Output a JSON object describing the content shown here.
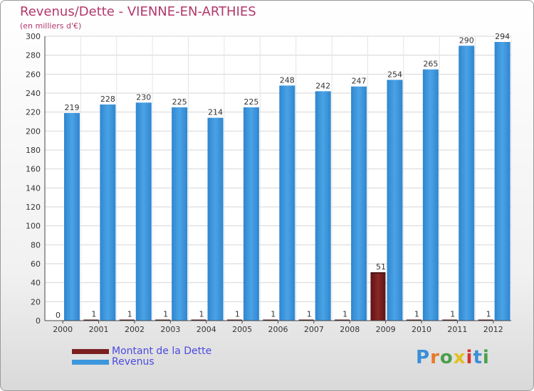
{
  "chart_data": {
    "type": "bar",
    "title": "Revenus/Dette - VIENNE-EN-ARTHIES",
    "subtitle": "(en milliers d'€)",
    "categories": [
      "2000",
      "2001",
      "2002",
      "2003",
      "2004",
      "2005",
      "2006",
      "2007",
      "2008",
      "2009",
      "2010",
      "2011",
      "2012"
    ],
    "series": [
      {
        "name": "Montant de la Dette",
        "color": "#7a1f1f",
        "values": [
          0,
          1,
          1,
          1,
          1,
          1,
          1,
          1,
          1,
          51,
          1,
          1,
          1
        ]
      },
      {
        "name": "Revenus",
        "color": "#3d97dd",
        "values": [
          219,
          228,
          230,
          225,
          214,
          225,
          248,
          242,
          247,
          254,
          265,
          290,
          294
        ]
      }
    ],
    "ylim": [
      0,
      300
    ],
    "yticks": [
      0,
      20,
      40,
      60,
      80,
      100,
      120,
      140,
      160,
      180,
      200,
      220,
      240,
      260,
      280,
      300
    ],
    "grid": true,
    "legend": "bottom-left"
  },
  "logo": {
    "text": "Proxiti",
    "colors": [
      "#3a8fd8",
      "#e8792a",
      "#4aa04a",
      "#e0c020",
      "#d93030",
      "#3a8fd8",
      "#4aa04a"
    ]
  }
}
